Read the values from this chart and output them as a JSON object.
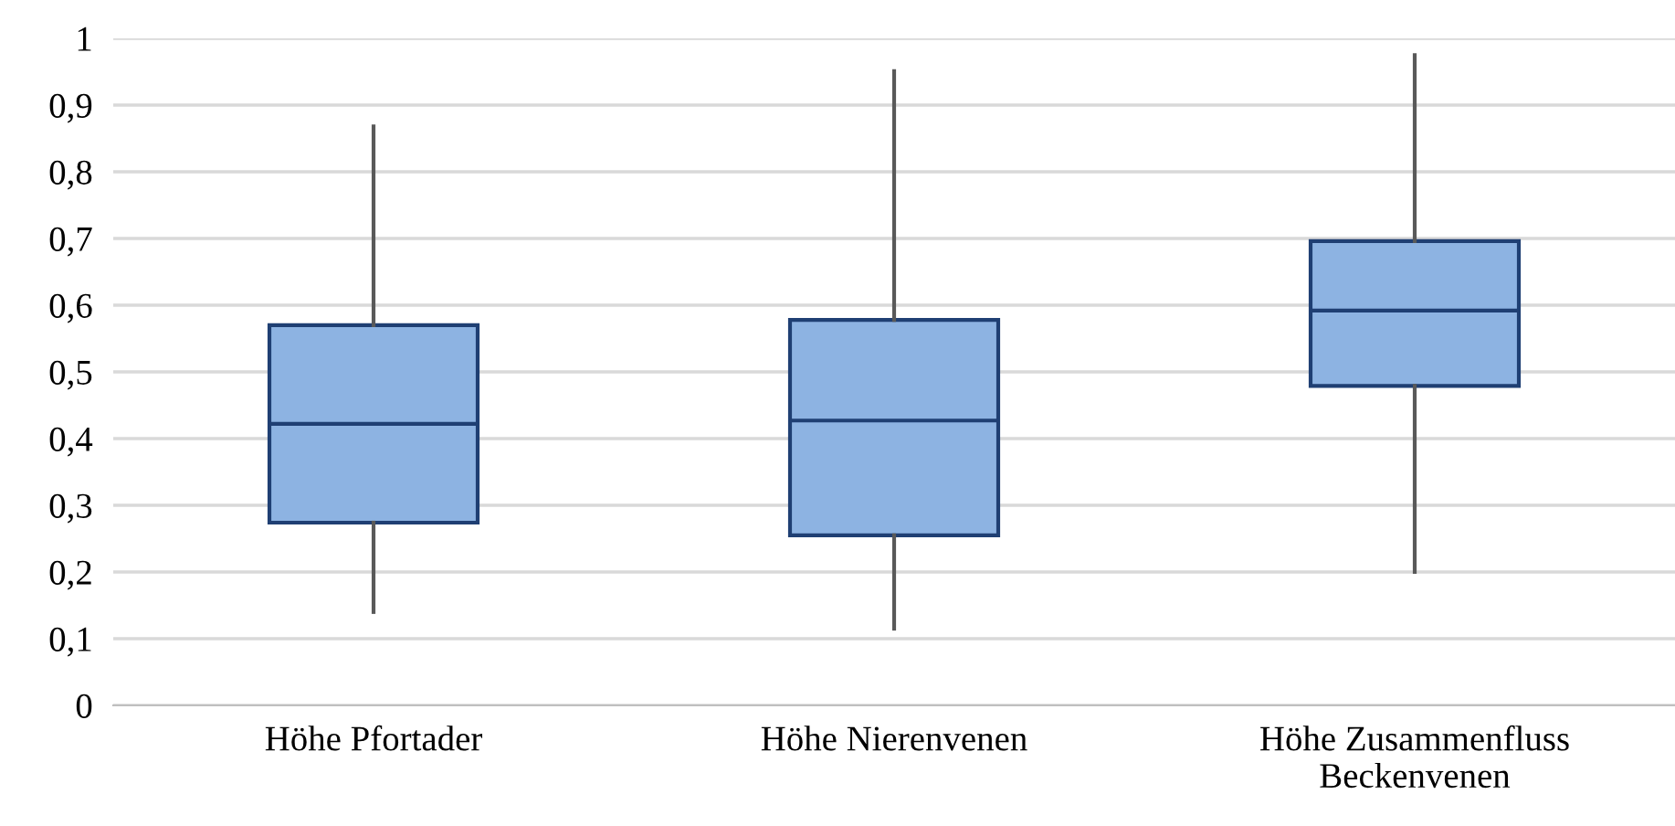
{
  "chart_data": {
    "type": "box",
    "categories": [
      "Höhe Pfortader",
      "Höhe Nierenvenen",
      "Höhe Zusammenfluss\nBeckenvenen"
    ],
    "boxes": [
      {
        "low": 0.14,
        "q1": 0.274,
        "median": 0.422,
        "q3": 0.57,
        "high": 0.868
      },
      {
        "low": 0.115,
        "q1": 0.255,
        "median": 0.427,
        "q3": 0.578,
        "high": 0.951
      },
      {
        "low": 0.2,
        "q1": 0.479,
        "median": 0.592,
        "q3": 0.696,
        "high": 0.975
      }
    ],
    "color": "#8db3e2",
    "ylim": [
      0,
      1
    ],
    "yticks": [
      0,
      {
        "value": 0.1,
        "label": "0,1"
      },
      {
        "value": 0.2,
        "label": "0,2"
      },
      {
        "value": 0.3,
        "label": "0,3"
      },
      {
        "value": 0.4,
        "label": "0,4"
      },
      {
        "value": 0.5,
        "label": "0,5"
      },
      {
        "value": 0.6,
        "label": "0,6"
      },
      {
        "value": 0.7,
        "label": "0,7"
      },
      {
        "value": 0.8,
        "label": "0,8"
      },
      {
        "value": 0.9,
        "label": "0,9"
      },
      1
    ],
    "grid": "y"
  }
}
